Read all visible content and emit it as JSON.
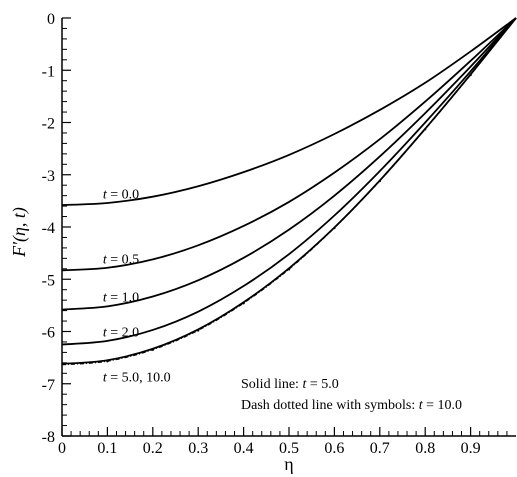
{
  "chart_data": {
    "type": "line",
    "xlabel": "η",
    "ylabel": "F′(η, t)",
    "xlim": [
      0,
      1
    ],
    "ylim": [
      -8,
      0
    ],
    "x_ticks": [
      0,
      0.1,
      0.2,
      0.3,
      0.4,
      0.5,
      0.6,
      0.7,
      0.8,
      0.9
    ],
    "x_tick_labels": [
      "0",
      "0.1",
      "0.2",
      "0.3",
      "0.4",
      "0.5",
      "0.6",
      "0.7",
      "0.8",
      "0.9"
    ],
    "y_ticks": [
      0,
      -1,
      -2,
      -3,
      -4,
      -5,
      -6,
      -7,
      -8
    ],
    "y_tick_labels": [
      "0",
      "-1",
      "-2",
      "-3",
      "-4",
      "-5",
      "-6",
      "-7",
      "-8"
    ],
    "grid": false,
    "annotations": [
      {
        "text": "t = 0.0",
        "x": 0.09,
        "y": -3.38
      },
      {
        "text": "t = 0.5",
        "x": 0.09,
        "y": -4.62
      },
      {
        "text": "t = 1.0",
        "x": 0.09,
        "y": -5.35
      },
      {
        "text": "t = 2.0",
        "x": 0.09,
        "y": -6.02
      },
      {
        "text": "t = 5.0, 10.0",
        "x": 0.09,
        "y": -6.88
      }
    ],
    "notes": [
      "Solid line: t = 5.0",
      "Dash dotted line with symbols: t = 10.0"
    ],
    "series": [
      {
        "style": "solid",
        "x": [
          0,
          0.1,
          0.2,
          0.3,
          0.4,
          0.5,
          0.6,
          0.7,
          0.8,
          0.9,
          1.0
        ],
        "y": [
          -3.58,
          -3.54,
          -3.42,
          -3.22,
          -2.95,
          -2.62,
          -2.22,
          -1.76,
          -1.24,
          -0.64,
          0
        ]
      },
      {
        "style": "solid",
        "x": [
          0,
          0.1,
          0.2,
          0.3,
          0.4,
          0.5,
          0.6,
          0.7,
          0.8,
          0.9,
          1.0
        ],
        "y": [
          -4.83,
          -4.78,
          -4.62,
          -4.35,
          -3.98,
          -3.52,
          -2.96,
          -2.32,
          -1.6,
          -0.82,
          0
        ]
      },
      {
        "style": "solid",
        "x": [
          0,
          0.1,
          0.2,
          0.3,
          0.4,
          0.5,
          0.6,
          0.7,
          0.8,
          0.9,
          1.0
        ],
        "y": [
          -5.58,
          -5.52,
          -5.33,
          -5.02,
          -4.59,
          -4.05,
          -3.4,
          -2.65,
          -1.82,
          -0.93,
          0
        ]
      },
      {
        "style": "solid",
        "x": [
          0,
          0.1,
          0.2,
          0.3,
          0.4,
          0.5,
          0.6,
          0.7,
          0.8,
          0.9,
          1.0
        ],
        "y": [
          -6.25,
          -6.18,
          -5.97,
          -5.62,
          -5.13,
          -4.52,
          -3.78,
          -2.93,
          -2.0,
          -1.02,
          0
        ]
      },
      {
        "style": "solid",
        "x": [
          0,
          0.1,
          0.2,
          0.3,
          0.4,
          0.5,
          0.6,
          0.7,
          0.8,
          0.9,
          1.0
        ],
        "y": [
          -6.62,
          -6.55,
          -6.33,
          -5.96,
          -5.44,
          -4.79,
          -4.01,
          -3.11,
          -2.12,
          -1.08,
          0
        ]
      },
      {
        "style": "dash-dotted-symbols",
        "x": [
          0,
          0.1,
          0.2,
          0.3,
          0.4,
          0.5,
          0.6,
          0.7,
          0.8,
          0.9,
          1.0
        ],
        "y": [
          -6.64,
          -6.57,
          -6.35,
          -5.98,
          -5.46,
          -4.81,
          -4.02,
          -3.12,
          -2.13,
          -1.09,
          0
        ]
      }
    ]
  }
}
